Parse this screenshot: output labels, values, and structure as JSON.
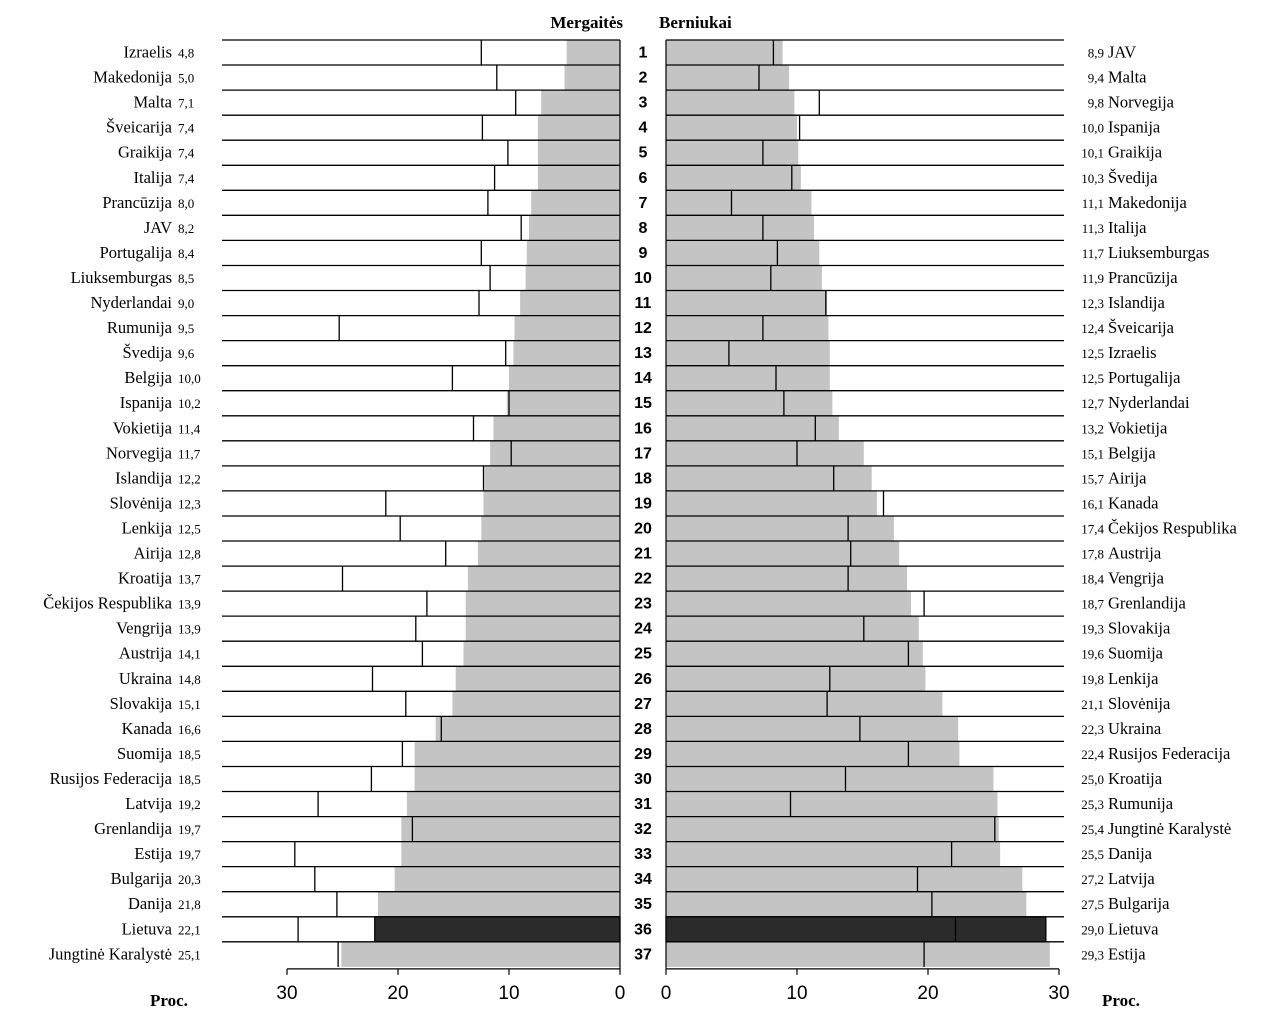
{
  "chart_data": [
    {
      "type": "bar",
      "title": "Mergaitės",
      "xlabel": "Proc.",
      "xlim": [
        0,
        30
      ],
      "ticks": [
        "30",
        "20",
        "10",
        "0"
      ],
      "highlight": "Lietuva",
      "categories": [
        "Izraelis",
        "Makedonija",
        "Malta",
        "Šveicarija",
        "Graikija",
        "Italija",
        "Prancūzija",
        "JAV",
        "Portugalija",
        "Liuksemburgas",
        "Nyderlandai",
        "Rumunija",
        "Švedija",
        "Belgija",
        "Ispanija",
        "Vokietija",
        "Norvegija",
        "Islandija",
        "Slovėnija",
        "Lenkija",
        "Airija",
        "Kroatija",
        "Čekijos Respublika",
        "Vengrija",
        "Austrija",
        "Ukraina",
        "Slovakija",
        "Kanada",
        "Suomija",
        "Rusijos Federacija",
        "Latvija",
        "Grenlandija",
        "Estija",
        "Bulgarija",
        "Danija",
        "Lietuva",
        "Jungtinė Karalystė"
      ],
      "values": [
        4.8,
        5.0,
        7.1,
        7.4,
        7.4,
        7.4,
        8.0,
        8.2,
        8.4,
        8.5,
        9.0,
        9.5,
        9.6,
        10.0,
        10.2,
        11.4,
        11.7,
        12.2,
        12.3,
        12.5,
        12.8,
        13.7,
        13.9,
        13.9,
        14.1,
        14.8,
        15.1,
        16.6,
        18.5,
        18.5,
        19.2,
        19.7,
        19.7,
        20.3,
        21.8,
        22.1,
        25.1
      ],
      "value_labels": [
        "4,8",
        "5,0",
        "7,1",
        "7,4",
        "7,4",
        "7,4",
        "8,0",
        "8,2",
        "8,4",
        "8,5",
        "9,0",
        "9,5",
        "9,6",
        "10,0",
        "10,2",
        "11,4",
        "11,7",
        "12,2",
        "12,3",
        "12,5",
        "12,8",
        "13,7",
        "13,9",
        "13,9",
        "14,1",
        "14,8",
        "15,1",
        "16,6",
        "18,5",
        "18,5",
        "19,2",
        "19,7",
        "19,7",
        "20,3",
        "21,8",
        "22,1",
        "25,1"
      ]
    },
    {
      "type": "bar",
      "title": "Berniukai",
      "xlabel": "Proc.",
      "xlim": [
        0,
        30
      ],
      "ticks": [
        "0",
        "10",
        "20",
        "30"
      ],
      "highlight": "Lietuva",
      "categories": [
        "JAV",
        "Malta",
        "Norvegija",
        "Ispanija",
        "Graikija",
        "Švedija",
        "Makedonija",
        "Italija",
        "Liuksemburgas",
        "Prancūzija",
        "Islandija",
        "Šveicarija",
        "Izraelis",
        "Portugalija",
        "Nyderlandai",
        "Vokietija",
        "Belgija",
        "Airija",
        "Kanada",
        "Čekijos Respublika",
        "Austrija",
        "Vengrija",
        "Grenlandija",
        "Slovakija",
        "Suomija",
        "Lenkija",
        "Slovėnija",
        "Ukraina",
        "Rusijos Federacija",
        "Kroatija",
        "Rumunija",
        "Jungtinė Karalystė",
        "Danija",
        "Latvija",
        "Bulgarija",
        "Lietuva",
        "Estija"
      ],
      "values": [
        8.9,
        9.4,
        9.8,
        10.0,
        10.1,
        10.3,
        11.1,
        11.3,
        11.7,
        11.9,
        12.3,
        12.4,
        12.5,
        12.5,
        12.7,
        13.2,
        15.1,
        15.7,
        16.1,
        17.4,
        17.8,
        18.4,
        18.7,
        19.3,
        19.6,
        19.8,
        21.1,
        22.3,
        22.4,
        25.0,
        25.3,
        25.4,
        25.5,
        27.2,
        27.5,
        29.0,
        29.3
      ],
      "value_labels": [
        "8,9",
        "9,4",
        "9,8",
        "10,0",
        "10,1",
        "10,3",
        "11,1",
        "11,3",
        "11,7",
        "11,9",
        "12,3",
        "12,4",
        "12,5",
        "12,5",
        "12,7",
        "13,2",
        "15,1",
        "15,7",
        "16,1",
        "17,4",
        "17,8",
        "18,4",
        "18,7",
        "19,3",
        "19,6",
        "19,8",
        "21,1",
        "22,3",
        "22,4",
        "25,0",
        "25,3",
        "25,4",
        "25,5",
        "27,2",
        "27,5",
        "29,0",
        "29,3"
      ]
    }
  ],
  "ranks": [
    "1",
    "2",
    "3",
    "4",
    "5",
    "6",
    "7",
    "8",
    "9",
    "10",
    "11",
    "12",
    "13",
    "14",
    "15",
    "16",
    "17",
    "18",
    "19",
    "20",
    "21",
    "22",
    "23",
    "24",
    "25",
    "26",
    "27",
    "28",
    "29",
    "30",
    "31",
    "32",
    "33",
    "34",
    "35",
    "36",
    "37"
  ],
  "colors": {
    "bar": "#c4c4c4",
    "highlight": "#2b2b2b",
    "line": "#000000",
    "text": "#000000"
  }
}
